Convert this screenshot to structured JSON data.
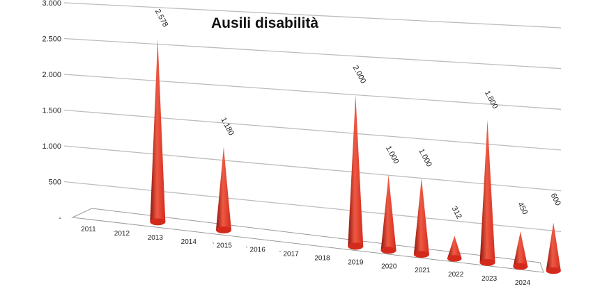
{
  "chart_data": {
    "type": "bar",
    "title": "Ausili disabilità",
    "xlabel": "",
    "ylabel": "",
    "categories": [
      "2011",
      "2012",
      "2013",
      "2014",
      "2015",
      "2016",
      "2017",
      "2018",
      "2019",
      "2020",
      "2021",
      "2022",
      "2023",
      "2024"
    ],
    "values": [
      0,
      2578,
      0,
      1180,
      0,
      0,
      0,
      2000,
      1000,
      1000,
      312,
      1800,
      450,
      600
    ],
    "data_labels": [
      "",
      "2.578",
      "",
      "1.180",
      "",
      "",
      "",
      "2.000",
      "1.000",
      "1.000",
      "312",
      "1.800",
      "450",
      "600"
    ],
    "category_prefixes": [
      "",
      "",
      "",
      "",
      "`",
      "`",
      "`",
      "",
      "",
      "",
      "",
      "",
      "",
      ""
    ],
    "ylim": [
      0,
      3000
    ],
    "yticks": [
      {
        "value": 0,
        "label": "-"
      },
      {
        "value": 500,
        "label": "500"
      },
      {
        "value": 1000,
        "label": "1.000"
      },
      {
        "value": 1500,
        "label": "1.500"
      },
      {
        "value": 2000,
        "label": "2.000"
      },
      {
        "value": 2500,
        "label": "2.500"
      },
      {
        "value": 3000,
        "label": "3.000"
      }
    ],
    "grid": true,
    "legend": "none",
    "mark_shape": "cone",
    "colors": {
      "bar": "#d42a1c",
      "bar_light": "#ee5a44",
      "bar_dark": "#8e130c",
      "grid": "#bdbdbd",
      "floor": "#9a9a9a"
    }
  }
}
